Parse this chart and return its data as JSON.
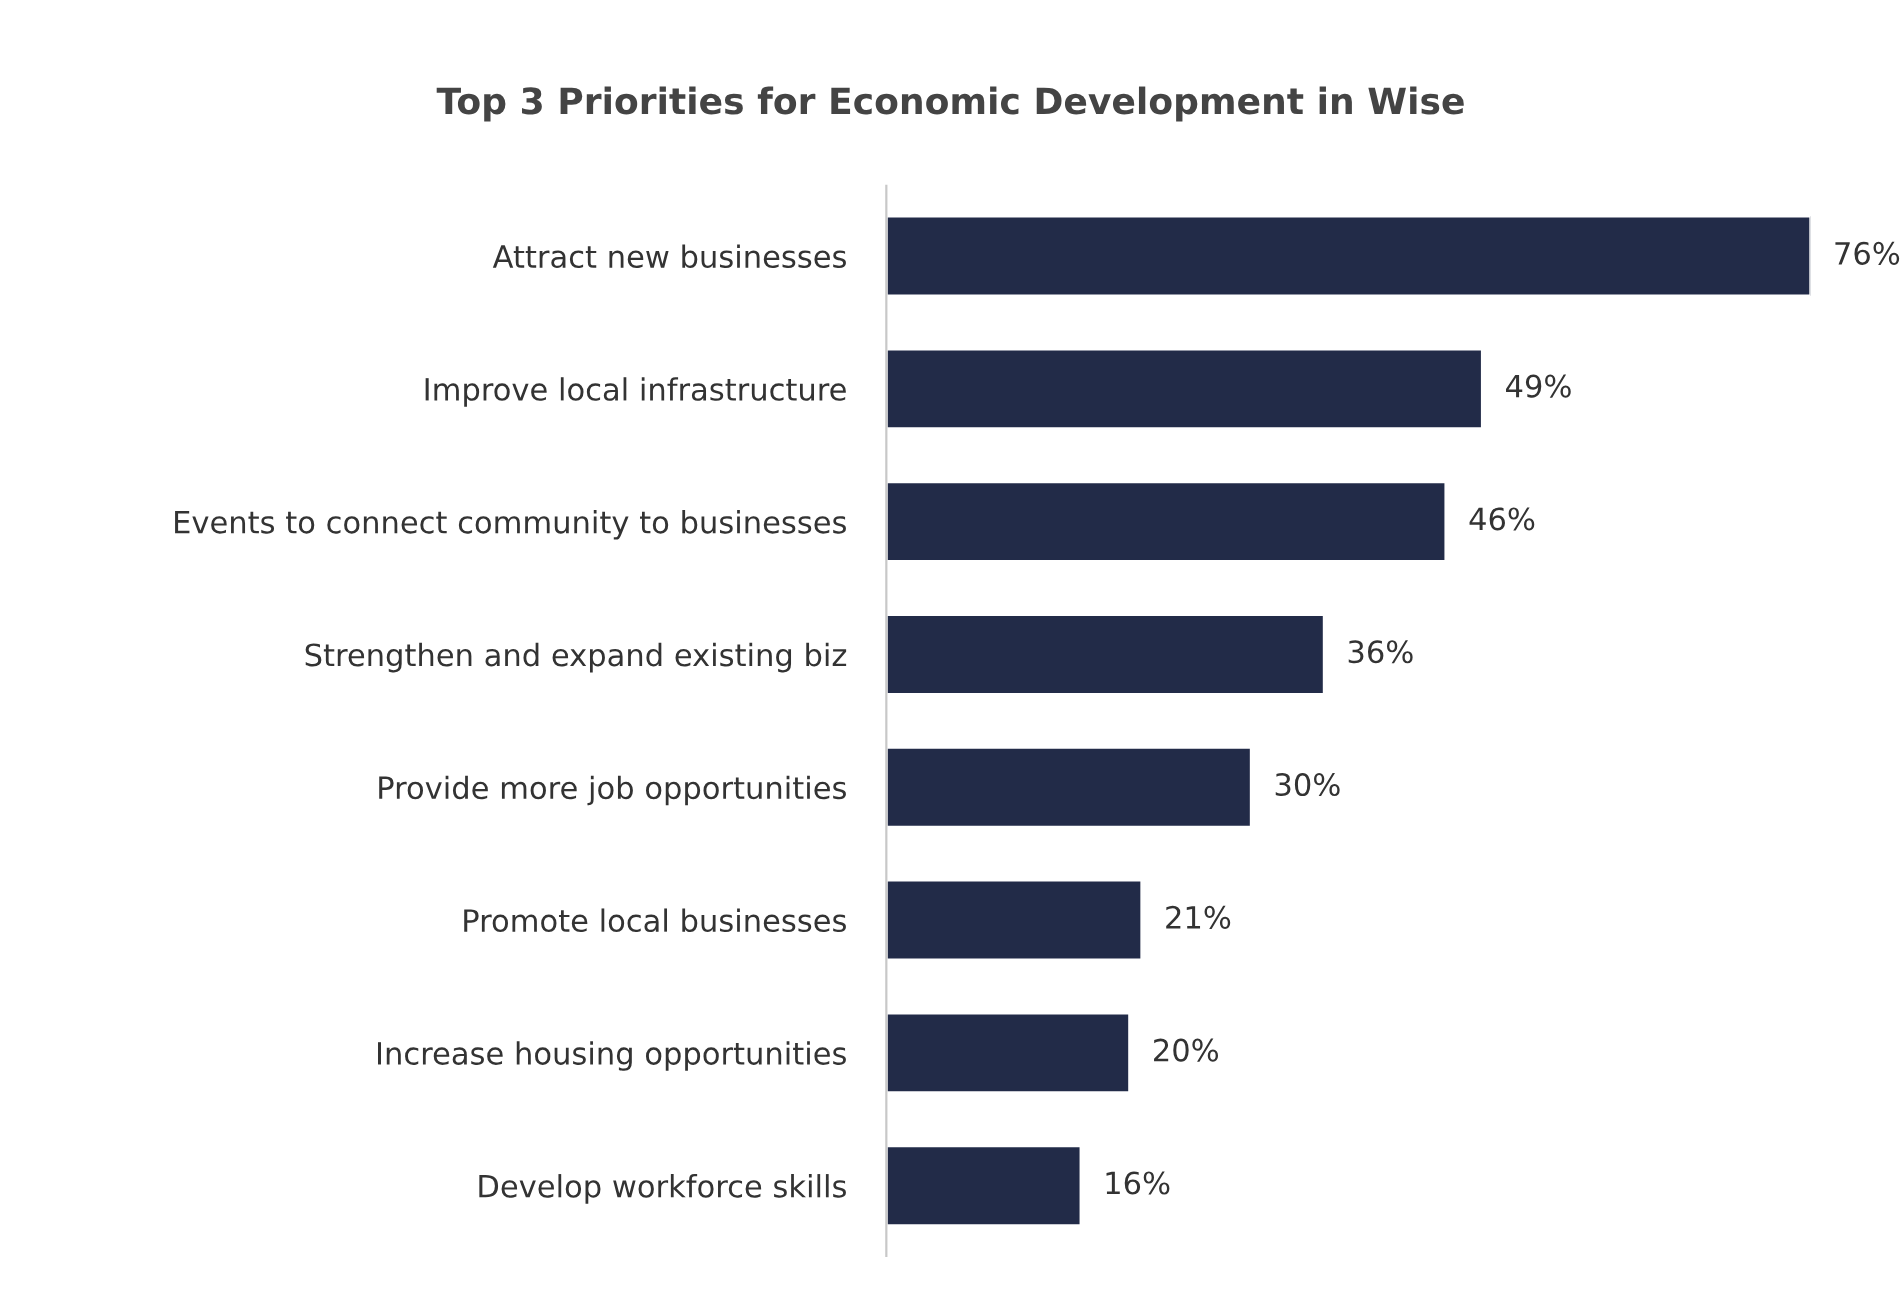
{
  "chart_data": {
    "type": "bar",
    "orientation": "horizontal",
    "title": "Top 3 Priorities for Economic Development in Wise",
    "categories": [
      "Attract new businesses",
      "Improve local infrastructure",
      "Events to connect community to businesses",
      "Strengthen and expand existing biz",
      "Provide more job opportunities",
      "Promote local businesses",
      "Increase housing opportunities",
      "Develop workforce skills"
    ],
    "values": [
      76,
      49,
      46,
      36,
      30,
      21,
      20,
      16
    ],
    "value_labels": [
      "76%",
      "49%",
      "46%",
      "36%",
      "30%",
      "21%",
      "20%",
      "16%"
    ],
    "color": "#222b48",
    "grid": false,
    "legend": false
  }
}
